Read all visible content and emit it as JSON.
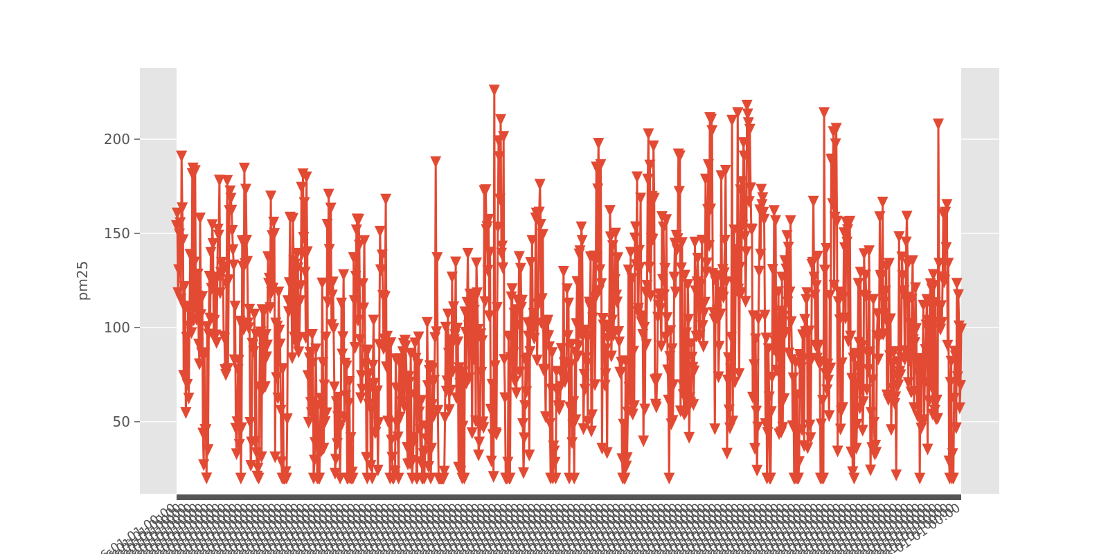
{
  "chart_data": {
    "type": "line",
    "title": "",
    "xlabel": "",
    "ylabel": "pm25",
    "ylim": [
      10,
      235
    ],
    "yticks": [
      50,
      100,
      150,
      200
    ],
    "grid": true,
    "marker": "triangle-down",
    "n_points": 1100,
    "series": [
      {
        "values": [
          155,
          95,
          140,
          112,
          60,
          130,
          135,
          100,
          128,
          60,
          138,
          72,
          65,
          110,
          158,
          78,
          42,
          120,
          95,
          135,
          60,
          42,
          80,
          132,
          62,
          90,
          38,
          115,
          102,
          48,
          60,
          128,
          55,
          38,
          85,
          75,
          48,
          22,
          60,
          95,
          32,
          70,
          100,
          52,
          118,
          90,
          58,
          145,
          68,
          178,
          48,
          110,
          95,
          58,
          118,
          130,
          72,
          40,
          90,
          112,
          48,
          126,
          60,
          92,
          158,
          72,
          132,
          112,
          40,
          95,
          140,
          78,
          162,
          92,
          125,
          58,
          150,
          100,
          80,
          120,
          135,
          165,
          88,
          145,
          80,
          110,
          155,
          178,
          70,
          132,
          48,
          118,
          90,
          110,
          40,
          60,
          75,
          130,
          52,
          100,
          160,
          80,
          130,
          45,
          92,
          108,
          70,
          125,
          88,
          62,
          112,
          118,
          95,
          55,
          75,
          100,
          88,
          120,
          52,
          92
        ]
      }
    ]
  }
}
